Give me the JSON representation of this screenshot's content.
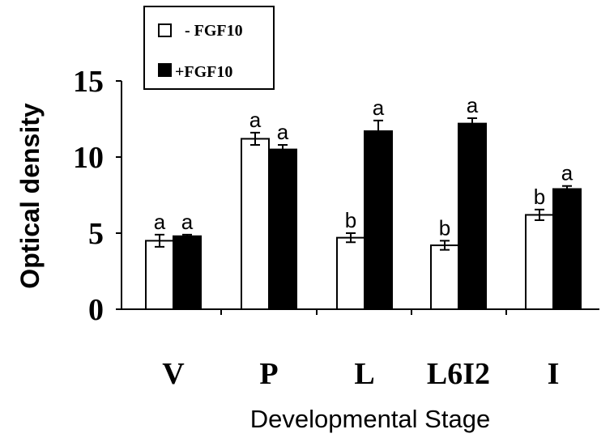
{
  "chart_data": {
    "type": "bar",
    "xlabel": "Developmental Stage",
    "ylabel": "Optical density",
    "ylim": [
      0,
      15
    ],
    "yticks": [
      "0",
      "5",
      "10",
      "15"
    ],
    "categories": [
      "V",
      "P",
      "L",
      "L6I2",
      "I"
    ],
    "series": [
      {
        "name": "- FGF10",
        "color": "#ffffff",
        "values": [
          4.5,
          11.2,
          4.7,
          4.2,
          6.2
        ],
        "errors": [
          0.4,
          0.4,
          0.3,
          0.3,
          0.35
        ],
        "letters": [
          "a",
          "a",
          "b",
          "b",
          "b"
        ]
      },
      {
        "name": "+FGF10",
        "color": "#000000",
        "values": [
          4.8,
          10.5,
          11.7,
          12.2,
          7.9
        ],
        "errors": [
          0.1,
          0.3,
          0.7,
          0.35,
          0.2
        ],
        "letters": [
          "a",
          "a",
          "a",
          "a",
          "a"
        ]
      }
    ],
    "legend_position": "top-left",
    "grid": false
  }
}
